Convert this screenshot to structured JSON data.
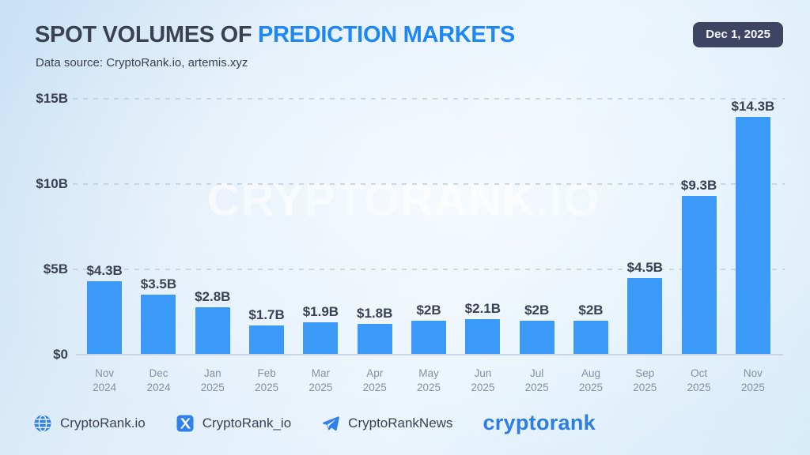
{
  "header": {
    "title_main": "SPOT VOLUMES OF ",
    "title_accent": "PREDICTION MARKETS",
    "subtitle": "Data source: CryptoRank.io, artemis.xyz",
    "date_badge": "Dec 1, 2025"
  },
  "watermark": "CRYPTORANK.IO",
  "chart_data": {
    "type": "bar",
    "title": "Spot Volumes of Prediction Markets",
    "unit": "USD billions",
    "categories": [
      {
        "month": "Nov",
        "year": "2024"
      },
      {
        "month": "Dec",
        "year": "2024"
      },
      {
        "month": "Jan",
        "year": "2025"
      },
      {
        "month": "Feb",
        "year": "2025"
      },
      {
        "month": "Mar",
        "year": "2025"
      },
      {
        "month": "Apr",
        "year": "2025"
      },
      {
        "month": "May",
        "year": "2025"
      },
      {
        "month": "Jun",
        "year": "2025"
      },
      {
        "month": "Jul",
        "year": "2025"
      },
      {
        "month": "Aug",
        "year": "2025"
      },
      {
        "month": "Sep",
        "year": "2025"
      },
      {
        "month": "Oct",
        "year": "2025"
      },
      {
        "month": "Nov",
        "year": "2025"
      }
    ],
    "values": [
      4.3,
      3.5,
      2.8,
      1.7,
      1.9,
      1.8,
      2,
      2.1,
      2,
      2,
      4.5,
      9.3,
      14.3
    ],
    "value_labels": [
      "$4.3B",
      "$3.5B",
      "$2.8B",
      "$1.7B",
      "$1.9B",
      "$1.8B",
      "$2B",
      "$2.1B",
      "$2B",
      "$2B",
      "$4.5B",
      "$9.3B",
      "$14.3B"
    ],
    "y_ticks": [
      {
        "label": "$15B",
        "value": 15
      },
      {
        "label": "$10B",
        "value": 10
      },
      {
        "label": "$5B",
        "value": 5
      },
      {
        "label": "$0",
        "value": 0
      }
    ],
    "ylim": [
      0,
      15
    ],
    "grid": "dashed-horizontal",
    "legend": "none",
    "bar_color": "#3b99f7"
  },
  "footer": {
    "links": [
      {
        "icon": "globe-icon",
        "label": "CryptoRank.io"
      },
      {
        "icon": "x-icon",
        "label": "CryptoRank_io"
      },
      {
        "icon": "telegram-icon",
        "label": "CryptoRankNews"
      }
    ],
    "logo_text": "cryptorank"
  },
  "colors": {
    "accent_blue": "#1c87f5",
    "bar_blue": "#3b99f7",
    "title_dark": "#3a4154",
    "badge_bg": "#3e4562",
    "icon_blue": "#2f80ed",
    "axis_label_gray": "#8591a3"
  }
}
